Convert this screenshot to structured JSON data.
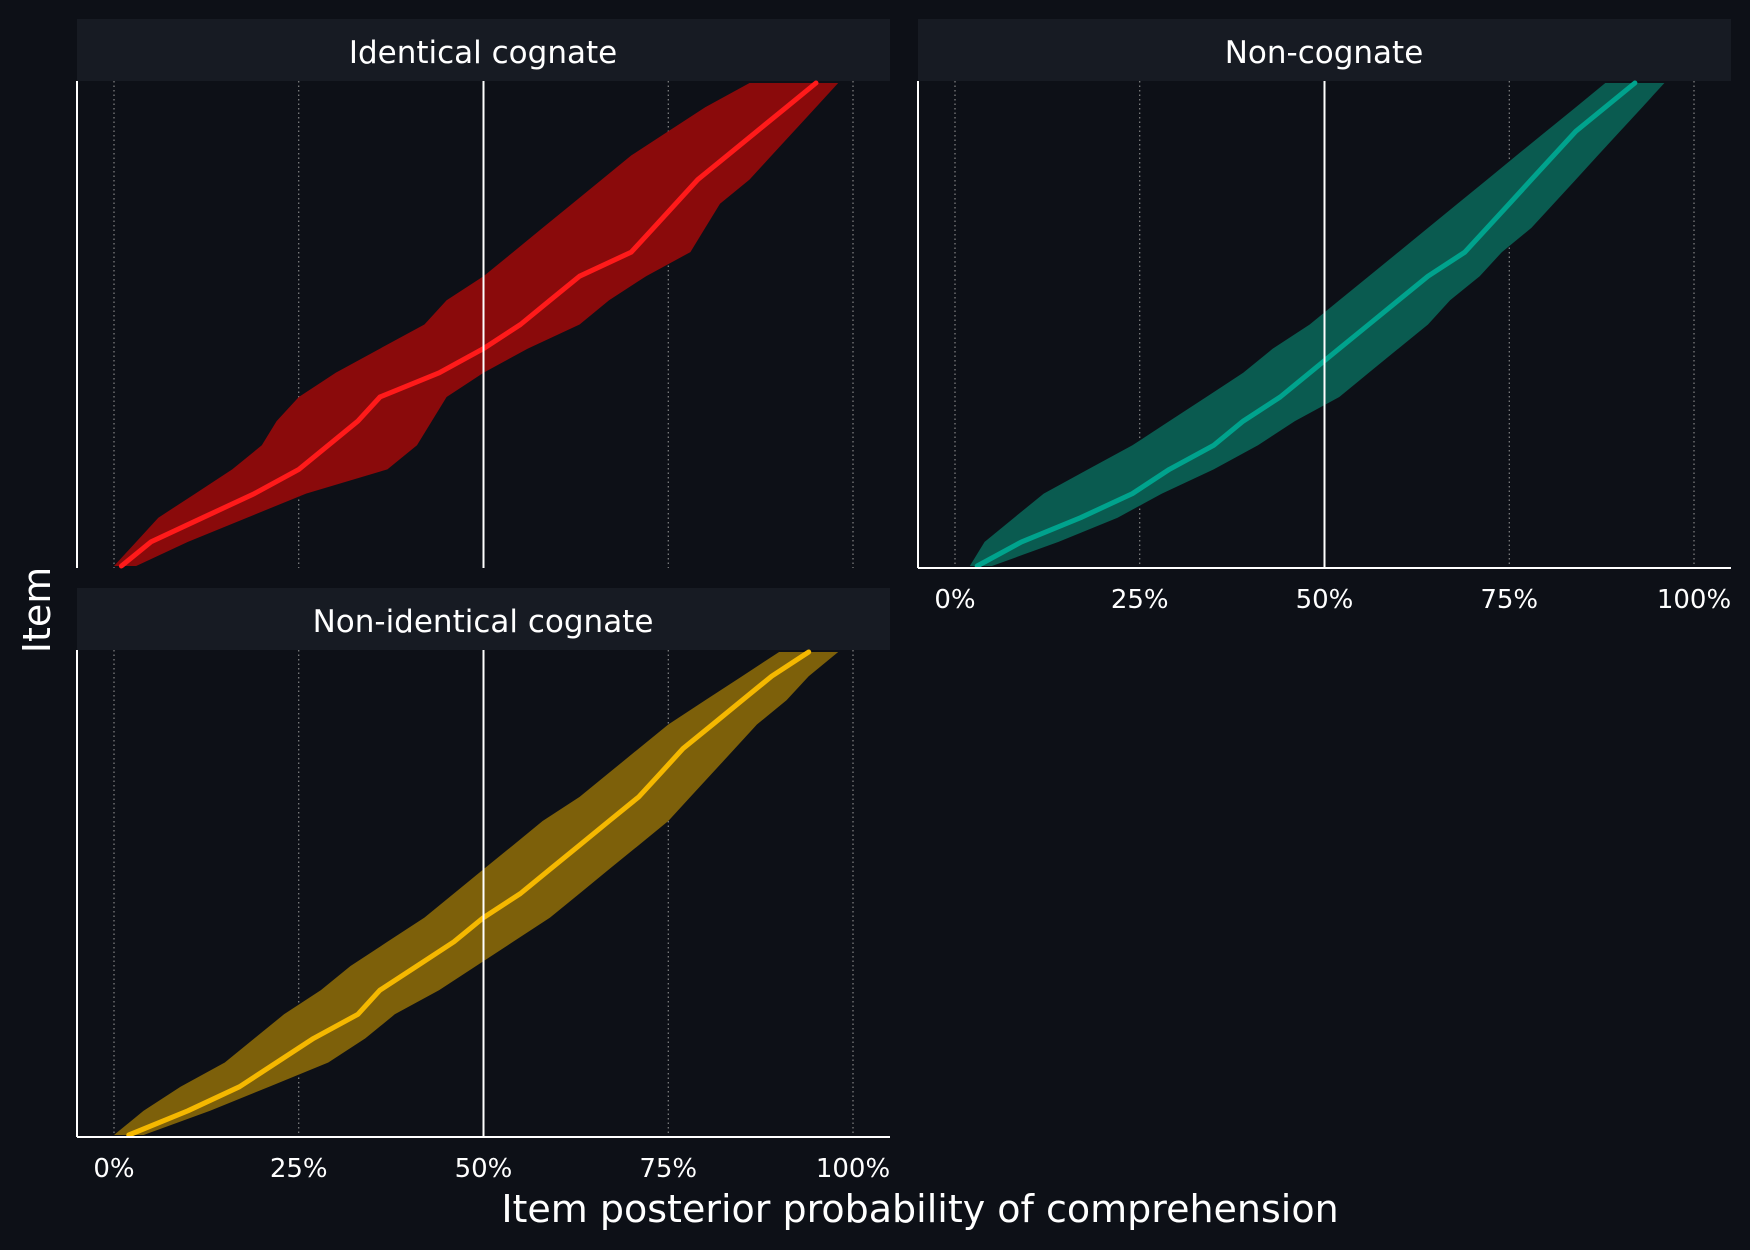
{
  "chart_data": {
    "type": "area",
    "xlabel": "Item posterior probability of comprehension",
    "ylabel": "Item",
    "xlim": [
      0,
      1
    ],
    "x_ticks": [
      0,
      0.25,
      0.5,
      0.75,
      1
    ],
    "x_tick_labels": [
      "0%",
      "25%",
      "50%",
      "75%",
      "100%"
    ],
    "reference_line": 0.5,
    "grid": "vertical dotted",
    "legend": "none",
    "colors": {
      "background": "#0d1017",
      "strip": "#171b23",
      "axis": "#ffffff",
      "grid": "#9a9a9a"
    },
    "panels": [
      {
        "name": "Identical cognate",
        "line_color": "#ff1a1a",
        "band_color": "#8a0a0b",
        "item_rank": [
          0,
          0.05,
          0.1,
          0.15,
          0.2,
          0.25,
          0.3,
          0.35,
          0.4,
          0.45,
          0.5,
          0.55,
          0.6,
          0.65,
          0.7,
          0.75,
          0.8,
          0.85,
          0.9,
          0.95,
          1
        ],
        "median": [
          0.01,
          0.05,
          0.12,
          0.19,
          0.25,
          0.29,
          0.33,
          0.36,
          0.44,
          0.5,
          0.55,
          0.59,
          0.63,
          0.7,
          0.73,
          0.76,
          0.79,
          0.83,
          0.87,
          0.91,
          0.95
        ],
        "lower": [
          0.0,
          0.03,
          0.06,
          0.11,
          0.16,
          0.2,
          0.22,
          0.25,
          0.3,
          0.36,
          0.42,
          0.45,
          0.5,
          0.54,
          0.58,
          0.62,
          0.66,
          0.7,
          0.75,
          0.8,
          0.86
        ],
        "upper": [
          0.03,
          0.1,
          0.18,
          0.26,
          0.37,
          0.41,
          0.43,
          0.45,
          0.5,
          0.56,
          0.63,
          0.67,
          0.72,
          0.78,
          0.8,
          0.82,
          0.86,
          0.89,
          0.92,
          0.95,
          0.98
        ]
      },
      {
        "name": "Non-cognate",
        "line_color": "#00a38d",
        "band_color": "#0a5b50",
        "item_rank": [
          0,
          0.05,
          0.1,
          0.15,
          0.2,
          0.25,
          0.3,
          0.35,
          0.4,
          0.45,
          0.5,
          0.55,
          0.6,
          0.65,
          0.7,
          0.75,
          0.8,
          0.85,
          0.9,
          0.95,
          1
        ],
        "median": [
          0.03,
          0.09,
          0.17,
          0.24,
          0.29,
          0.35,
          0.39,
          0.44,
          0.48,
          0.52,
          0.56,
          0.6,
          0.64,
          0.69,
          0.72,
          0.75,
          0.78,
          0.81,
          0.84,
          0.88,
          0.92
        ],
        "lower": [
          0.02,
          0.04,
          0.08,
          0.12,
          0.18,
          0.24,
          0.29,
          0.34,
          0.39,
          0.43,
          0.48,
          0.52,
          0.56,
          0.6,
          0.64,
          0.68,
          0.72,
          0.76,
          0.8,
          0.84,
          0.88
        ],
        "upper": [
          0.05,
          0.14,
          0.22,
          0.28,
          0.35,
          0.41,
          0.46,
          0.52,
          0.56,
          0.6,
          0.64,
          0.67,
          0.71,
          0.74,
          0.78,
          0.81,
          0.84,
          0.87,
          0.9,
          0.93,
          0.96
        ]
      },
      {
        "name": "Non-identical cognate",
        "line_color": "#f5b800",
        "band_color": "#7d600a",
        "item_rank": [
          0,
          0.05,
          0.1,
          0.15,
          0.2,
          0.25,
          0.3,
          0.35,
          0.4,
          0.45,
          0.5,
          0.55,
          0.6,
          0.65,
          0.7,
          0.75,
          0.8,
          0.85,
          0.9,
          0.95,
          1
        ],
        "median": [
          0.02,
          0.1,
          0.17,
          0.22,
          0.27,
          0.33,
          0.36,
          0.41,
          0.46,
          0.5,
          0.55,
          0.59,
          0.63,
          0.67,
          0.71,
          0.74,
          0.77,
          0.81,
          0.85,
          0.89,
          0.94
        ],
        "lower": [
          0.0,
          0.04,
          0.09,
          0.15,
          0.19,
          0.23,
          0.28,
          0.32,
          0.37,
          0.42,
          0.46,
          0.5,
          0.54,
          0.58,
          0.63,
          0.67,
          0.71,
          0.75,
          0.8,
          0.85,
          0.9
        ],
        "upper": [
          0.04,
          0.13,
          0.21,
          0.29,
          0.34,
          0.38,
          0.44,
          0.49,
          0.54,
          0.59,
          0.63,
          0.67,
          0.71,
          0.75,
          0.78,
          0.81,
          0.84,
          0.87,
          0.91,
          0.94,
          0.98
        ]
      }
    ]
  }
}
